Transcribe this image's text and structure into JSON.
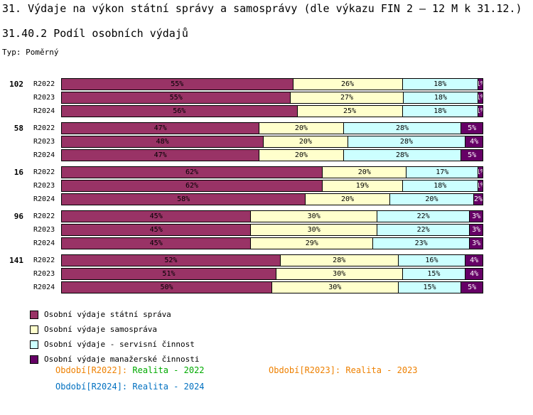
{
  "title": "31. Výdaje na výkon státní správy a samosprávy (dle výkazu FIN 2 – 12 M k 31.12.)",
  "subtitle": "31.40.2 Podíl osobních výdajů",
  "type_label": "Typ: Poměrný",
  "chart_data": {
    "type": "bar",
    "stacked": true,
    "orientation": "horizontal",
    "unit": "%",
    "xlim": [
      0,
      100
    ],
    "grid": false,
    "legend_position": "bottom-left",
    "series": [
      {
        "name": "Osobní výdaje státní správa",
        "color": "#993366",
        "label_color": "#000000"
      },
      {
        "name": "Osobní výdaje samospráva",
        "color": "#FFFFCC",
        "label_color": "#000000"
      },
      {
        "name": "Osobní výdaje - servisní činnost",
        "color": "#CCFFFF",
        "label_color": "#000000"
      },
      {
        "name": "Osobní výdaje manažerské činnosti",
        "color": "#660066",
        "label_color": "#FFFFFF"
      }
    ],
    "groups": [
      {
        "label": "102",
        "rows": [
          {
            "label": "R2022",
            "values": [
              55,
              26,
              18,
              1
            ]
          },
          {
            "label": "R2023",
            "values": [
              55,
              27,
              18,
              1
            ]
          },
          {
            "label": "R2024",
            "values": [
              56,
              25,
              18,
              1
            ]
          }
        ]
      },
      {
        "label": "58",
        "rows": [
          {
            "label": "R2022",
            "values": [
              47,
              20,
              28,
              5
            ]
          },
          {
            "label": "R2023",
            "values": [
              48,
              20,
              28,
              4
            ]
          },
          {
            "label": "R2024",
            "values": [
              47,
              20,
              28,
              5
            ]
          }
        ]
      },
      {
        "label": "16",
        "rows": [
          {
            "label": "R2022",
            "values": [
              62,
              20,
              17,
              1
            ]
          },
          {
            "label": "R2023",
            "values": [
              62,
              19,
              18,
              1
            ]
          },
          {
            "label": "R2024",
            "values": [
              58,
              20,
              20,
              2
            ]
          }
        ]
      },
      {
        "label": "96",
        "rows": [
          {
            "label": "R2022",
            "values": [
              45,
              30,
              22,
              3
            ]
          },
          {
            "label": "R2023",
            "values": [
              45,
              30,
              22,
              3
            ]
          },
          {
            "label": "R2024",
            "values": [
              45,
              29,
              23,
              3
            ]
          }
        ]
      },
      {
        "label": "141",
        "rows": [
          {
            "label": "R2022",
            "values": [
              52,
              28,
              16,
              4
            ]
          },
          {
            "label": "R2023",
            "values": [
              51,
              30,
              15,
              4
            ]
          },
          {
            "label": "R2024",
            "values": [
              50,
              30,
              15,
              5
            ]
          }
        ]
      }
    ]
  },
  "footer": [
    {
      "prefix": "Období[R2022]:",
      "value": "Realita - 2022",
      "prefix_color": "#EE8000",
      "value_color": "#00AA00"
    },
    {
      "prefix": "Období[R2023]:",
      "value": "Realita - 2023",
      "prefix_color": "#EE8000",
      "value_color": "#EE8000"
    },
    {
      "prefix": "Období[R2024]:",
      "value": "Realita - 2024",
      "prefix_color": "#0070C0",
      "value_color": "#0070C0"
    }
  ]
}
